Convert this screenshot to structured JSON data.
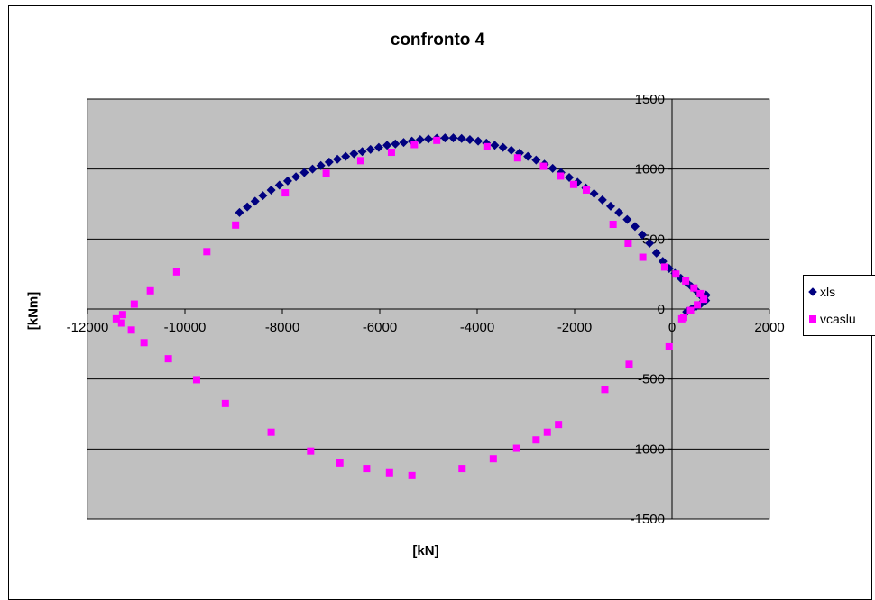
{
  "colors": {
    "plot_bg": "#c0c0c0",
    "xls": "#000080",
    "vcaslu": "#ff00ff",
    "grid": "#000000"
  },
  "chart_data": {
    "type": "scatter",
    "title": "confronto 4",
    "xlabel": "[kN]",
    "ylabel": "[kNm]",
    "xlim": [
      -12000,
      2000
    ],
    "ylim": [
      -1500,
      1500
    ],
    "x_ticks": [
      -12000,
      -10000,
      -8000,
      -6000,
      -4000,
      -2000,
      0,
      2000
    ],
    "y_ticks": [
      -1500,
      -1000,
      -500,
      0,
      500,
      1000,
      1500
    ],
    "x_tick_labels": [
      "-12000",
      "-10000",
      "-8000",
      "-6000",
      "-4000",
      "-2000",
      "0",
      "2000"
    ],
    "y_tick_labels": [
      "-1500",
      "-1000",
      "-500",
      "0",
      "500",
      "1000",
      "1500"
    ],
    "grid": "horizontal",
    "legend": "right",
    "series": [
      {
        "name": "xls",
        "marker": "diamond",
        "color": "#000080",
        "points": [
          [
            -8880,
            690
          ],
          [
            -8720,
            730
          ],
          [
            -8560,
            770
          ],
          [
            -8400,
            810
          ],
          [
            -8230,
            850
          ],
          [
            -8060,
            885
          ],
          [
            -7890,
            915
          ],
          [
            -7720,
            945
          ],
          [
            -7550,
            975
          ],
          [
            -7380,
            1000
          ],
          [
            -7210,
            1025
          ],
          [
            -7040,
            1050
          ],
          [
            -6870,
            1070
          ],
          [
            -6700,
            1090
          ],
          [
            -6530,
            1110
          ],
          [
            -6360,
            1125
          ],
          [
            -6190,
            1140
          ],
          [
            -6020,
            1155
          ],
          [
            -5850,
            1170
          ],
          [
            -5680,
            1180
          ],
          [
            -5510,
            1190
          ],
          [
            -5340,
            1200
          ],
          [
            -5170,
            1210
          ],
          [
            -5000,
            1215
          ],
          [
            -4830,
            1220
          ],
          [
            -4660,
            1222
          ],
          [
            -4490,
            1222
          ],
          [
            -4320,
            1218
          ],
          [
            -4150,
            1210
          ],
          [
            -3980,
            1200
          ],
          [
            -3810,
            1185
          ],
          [
            -3640,
            1170
          ],
          [
            -3470,
            1155
          ],
          [
            -3300,
            1135
          ],
          [
            -3130,
            1115
          ],
          [
            -2960,
            1090
          ],
          [
            -2790,
            1065
          ],
          [
            -2620,
            1035
          ],
          [
            -2450,
            1005
          ],
          [
            -2280,
            975
          ],
          [
            -2110,
            940
          ],
          [
            -1940,
            905
          ],
          [
            -1770,
            865
          ],
          [
            -1600,
            825
          ],
          [
            -1430,
            780
          ],
          [
            -1260,
            735
          ],
          [
            -1090,
            690
          ],
          [
            -920,
            640
          ],
          [
            -760,
            590
          ],
          [
            -610,
            530
          ],
          [
            -460,
            470
          ],
          [
            -320,
            400
          ],
          [
            -190,
            340
          ],
          [
            -60,
            290
          ],
          [
            60,
            255
          ],
          [
            180,
            220
          ],
          [
            300,
            190
          ],
          [
            400,
            160
          ],
          [
            500,
            130
          ],
          [
            580,
            100
          ],
          [
            650,
            75
          ],
          [
            700,
            100
          ],
          [
            690,
            60
          ],
          [
            600,
            40
          ],
          [
            500,
            20
          ],
          [
            400,
            0
          ],
          [
            300,
            -20
          ]
        ]
      },
      {
        "name": "vcaslu",
        "marker": "square",
        "color": "#ff00ff",
        "points": [
          [
            -8960,
            600
          ],
          [
            -7940,
            830
          ],
          [
            -7100,
            970
          ],
          [
            -6390,
            1060
          ],
          [
            -5760,
            1120
          ],
          [
            -5290,
            1175
          ],
          [
            -4830,
            1205
          ],
          [
            -3800,
            1160
          ],
          [
            -3170,
            1080
          ],
          [
            -2640,
            1020
          ],
          [
            -2290,
            950
          ],
          [
            -2020,
            890
          ],
          [
            -1760,
            850
          ],
          [
            -1210,
            605
          ],
          [
            -900,
            470
          ],
          [
            -600,
            370
          ],
          [
            -150,
            300
          ],
          [
            80,
            250
          ],
          [
            280,
            200
          ],
          [
            450,
            150
          ],
          [
            580,
            110
          ],
          [
            650,
            70
          ],
          [
            520,
            30
          ],
          [
            380,
            -10
          ],
          [
            240,
            -60
          ],
          [
            200,
            -70
          ],
          [
            -60,
            -270
          ],
          [
            -880,
            -395
          ],
          [
            -1380,
            -575
          ],
          [
            -2560,
            -880
          ],
          [
            -2330,
            -825
          ],
          [
            -2790,
            -935
          ],
          [
            -3190,
            -995
          ],
          [
            -3670,
            -1070
          ],
          [
            -4310,
            -1140
          ],
          [
            -5340,
            -1190
          ],
          [
            -5800,
            -1170
          ],
          [
            -6270,
            -1140
          ],
          [
            -6820,
            -1100
          ],
          [
            -7420,
            -1015
          ],
          [
            -8230,
            -880
          ],
          [
            -9170,
            -675
          ],
          [
            -9760,
            -505
          ],
          [
            -10340,
            -355
          ],
          [
            -10840,
            -240
          ],
          [
            -11100,
            -150
          ],
          [
            -11300,
            -100
          ],
          [
            -11410,
            -70
          ],
          [
            -11280,
            -40
          ],
          [
            -11040,
            35
          ],
          [
            -10710,
            130
          ],
          [
            -10170,
            265
          ],
          [
            -9550,
            410
          ]
        ]
      }
    ]
  }
}
